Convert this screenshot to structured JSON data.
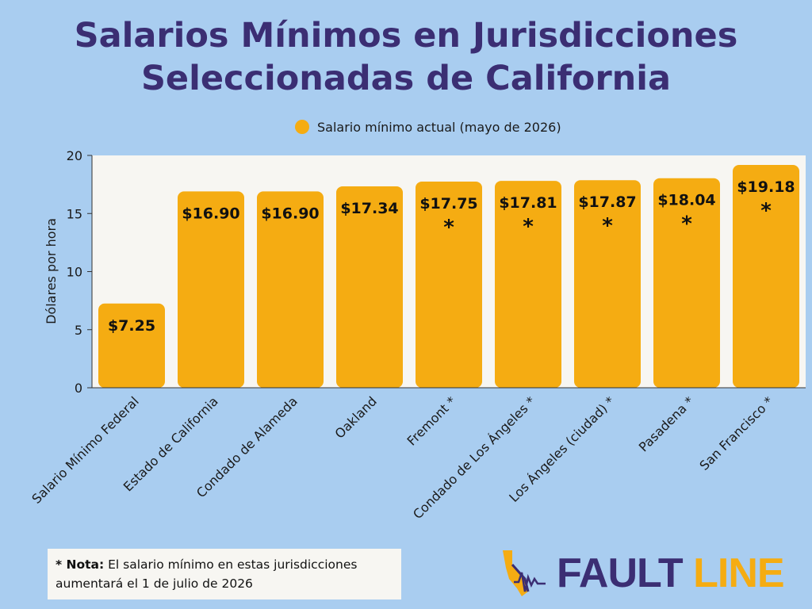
{
  "title": {
    "line1": "Salarios Mínimos en Jurisdicciones",
    "line2": "Seleccionadas de California"
  },
  "legend": {
    "label": "Salario mínimo actual (mayo de 2026)"
  },
  "note": {
    "prefix": "* Nota:",
    "text": " El salario mínimo en estas jurisdicciones aumentará el 1 de julio de 2026"
  },
  "logo": {
    "word1": "FAULT",
    "word2": "LINE"
  },
  "colors": {
    "bar": "#f5ac12",
    "plot_bg": "#f7f6f2",
    "title": "#3b2e73",
    "page_bg": "#a9cdf0"
  },
  "chart_data": {
    "type": "bar",
    "title": "Salarios Mínimos en Jurisdicciones Seleccionadas de California",
    "ylabel": "Dólares por hora",
    "xlabel": "",
    "ylim": [
      0,
      20
    ],
    "yticks": [
      0,
      5,
      10,
      15,
      20
    ],
    "grid": false,
    "legend": "top-center",
    "categories": [
      "Salario Mínimo Federal",
      "Estado de California",
      "Condado de Alameda",
      "Oakland",
      "Fremont *",
      "Condado de Los Ángeles *",
      "Los Ángeles (ciudad) *",
      "Pasadena *",
      "San Francisco *"
    ],
    "series": [
      {
        "name": "Salario mínimo actual (mayo de 2026)",
        "values": [
          7.25,
          16.9,
          16.9,
          17.34,
          17.75,
          17.81,
          17.87,
          18.04,
          19.18
        ],
        "labels": [
          "$7.25",
          "$16.90",
          "$16.90",
          "$17.34",
          "$17.75",
          "$17.81",
          "$17.87",
          "$18.04",
          "$19.18"
        ],
        "asterisk": [
          false,
          false,
          false,
          false,
          true,
          true,
          true,
          true,
          true
        ]
      }
    ]
  }
}
